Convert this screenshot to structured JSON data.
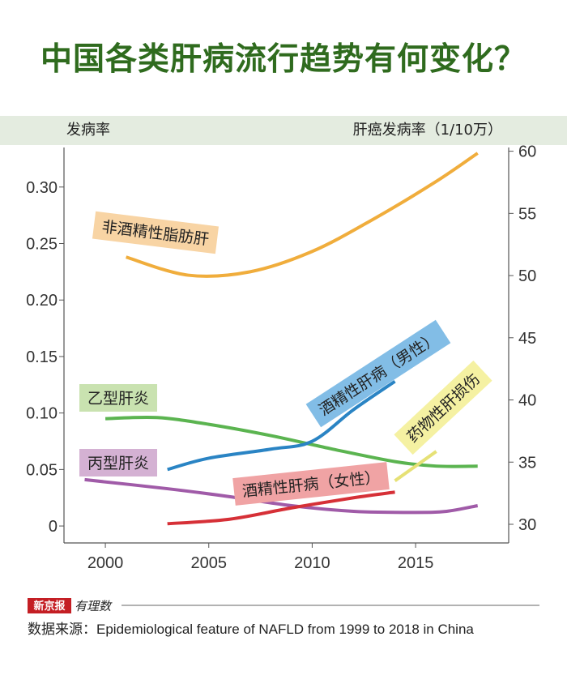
{
  "page": {
    "title": "中国各类肝病流行趋势有何变化？",
    "source": "数据来源：Epidemiological feature of NAFLD from 1999 to 2018 in China",
    "brand_main": "新京报",
    "brand_sub": "有理数"
  },
  "colors": {
    "title": "#2f6b1e",
    "band": "#e4ece0",
    "axis": "#555555"
  },
  "chart_data": {
    "type": "line",
    "title": "中国各类肝病流行趋势有何变化？",
    "ylabel": "发病率",
    "y2label": "肝癌发病率（1/10万）",
    "x_ticks": [
      "2000",
      "2005",
      "2010",
      "2015"
    ],
    "x_tick_values": [
      2000,
      2005,
      2010,
      2015
    ],
    "xlim": [
      1998,
      2019.5
    ],
    "y_ticks": [
      "0",
      "0.05",
      "0.10",
      "0.15",
      "0.20",
      "0.25",
      "0.30"
    ],
    "y_tick_values": [
      0,
      0.05,
      0.1,
      0.15,
      0.2,
      0.25,
      0.3
    ],
    "ylim": [
      -0.015,
      0.335
    ],
    "y2_ticks": [
      "30",
      "35",
      "40",
      "45",
      "50",
      "55",
      "60"
    ],
    "y2_tick_values": [
      30,
      35,
      40,
      45,
      50,
      55,
      60
    ],
    "y2lim": [
      28.5,
      60.3
    ],
    "series": [
      {
        "name": "非酒精性脂肪肝",
        "axis": "left",
        "color": "#f0ad3c",
        "label_bg": "#f8d4a4",
        "label_angle": 7,
        "points": [
          [
            2001,
            0.238
          ],
          [
            2004,
            0.222
          ],
          [
            2007,
            0.225
          ],
          [
            2010,
            0.243
          ],
          [
            2013,
            0.272
          ],
          [
            2016,
            0.305
          ],
          [
            2018,
            0.33
          ]
        ]
      },
      {
        "name": "乙型肝炎",
        "axis": "left",
        "color": "#5bb450",
        "label_bg": "#c9e2b0",
        "label_angle": 0,
        "points": [
          [
            2000,
            0.095
          ],
          [
            2002.5,
            0.096
          ],
          [
            2005,
            0.09
          ],
          [
            2008,
            0.08
          ],
          [
            2011,
            0.068
          ],
          [
            2014,
            0.057
          ],
          [
            2016,
            0.053
          ],
          [
            2018,
            0.053
          ]
        ]
      },
      {
        "name": "丙型肝炎",
        "axis": "left",
        "color": "#a05ba8",
        "label_bg": "#d4b1d3",
        "label_angle": 0,
        "points": [
          [
            1999,
            0.041
          ],
          [
            2003,
            0.033
          ],
          [
            2006,
            0.026
          ],
          [
            2009,
            0.018
          ],
          [
            2012,
            0.013
          ],
          [
            2015,
            0.012
          ],
          [
            2016.5,
            0.013
          ],
          [
            2018,
            0.018
          ]
        ]
      },
      {
        "name": "酒精性肝病（男性）",
        "axis": "left",
        "color": "#2a84c4",
        "label_bg": "#82bde6",
        "label_angle": -33,
        "points": [
          [
            2003,
            0.05
          ],
          [
            2005,
            0.06
          ],
          [
            2008,
            0.068
          ],
          [
            2010,
            0.075
          ],
          [
            2012,
            0.103
          ],
          [
            2014,
            0.128
          ]
        ]
      },
      {
        "name": "酒精性肝病（女性）",
        "axis": "left",
        "color": "#d63037",
        "label_bg": "#f0a3a4",
        "label_angle": -6,
        "points": [
          [
            2003,
            0.002
          ],
          [
            2006,
            0.006
          ],
          [
            2009,
            0.016
          ],
          [
            2012,
            0.025
          ],
          [
            2014,
            0.03
          ]
        ]
      },
      {
        "name": "药物性肝损伤",
        "axis": "left",
        "color": "#e6e176",
        "label_bg": "#f5f1a2",
        "label_angle": -43,
        "points": [
          [
            2014,
            0.04
          ],
          [
            2016,
            0.066
          ]
        ]
      }
    ]
  }
}
